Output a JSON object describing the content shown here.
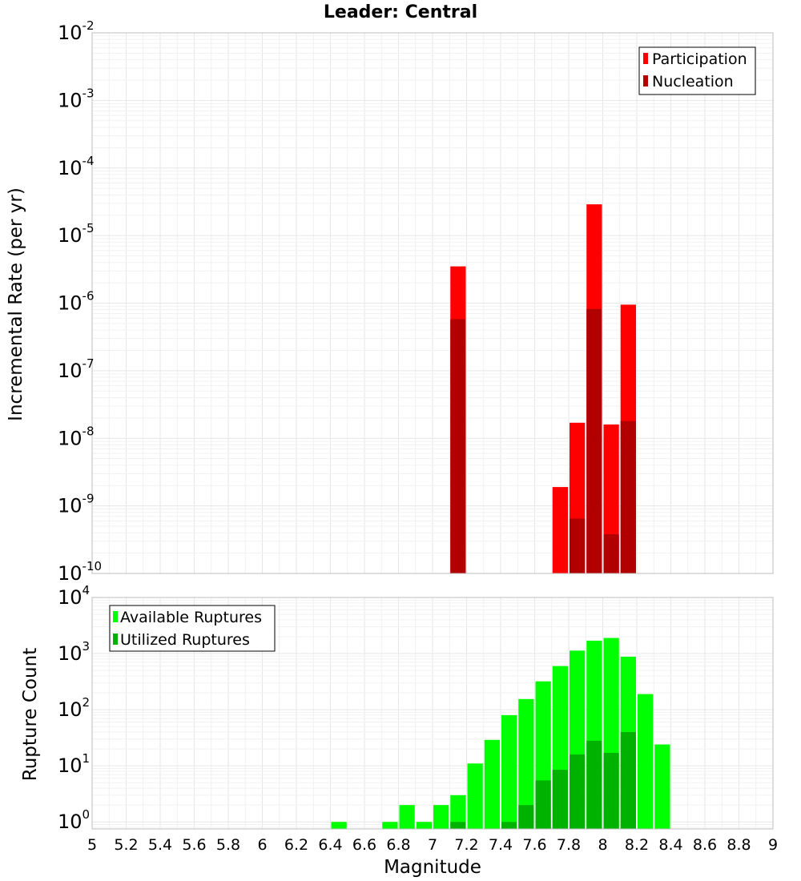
{
  "chart_data": [
    {
      "type": "bar",
      "title": "Leader: Central",
      "xlabel": "",
      "ylabel": "Incremental Rate (per yr)",
      "yscale": "log",
      "ylim": [
        1e-10,
        0.01
      ],
      "xlim": [
        5,
        9
      ],
      "bin_width": 0.1,
      "grid": true,
      "legend_position": "top-right",
      "series": [
        {
          "name": "Participation",
          "color": "#ff0000",
          "x": [
            7.15,
            7.75,
            7.85,
            7.95,
            8.05,
            8.15
          ],
          "values": [
            3.5e-06,
            1.9e-09,
            1.7e-08,
            2.9e-05,
            1.6e-08,
            9.5e-07
          ]
        },
        {
          "name": "Nucleation",
          "color": "#b20000",
          "x": [
            7.15,
            7.85,
            7.95,
            8.05,
            8.15
          ],
          "values": [
            5.8e-07,
            6.5e-10,
            8.2e-07,
            3.8e-10,
            1.8e-08
          ]
        }
      ],
      "ytick_labels": [
        {
          "base": "10",
          "exp": "-10"
        },
        {
          "base": "10",
          "exp": "-9"
        },
        {
          "base": "10",
          "exp": "-8"
        },
        {
          "base": "10",
          "exp": "-7"
        },
        {
          "base": "10",
          "exp": "-6"
        },
        {
          "base": "10",
          "exp": "-5"
        },
        {
          "base": "10",
          "exp": "-4"
        },
        {
          "base": "10",
          "exp": "-3"
        },
        {
          "base": "10",
          "exp": "-2"
        }
      ]
    },
    {
      "type": "bar",
      "title": "",
      "xlabel": "Magnitude",
      "ylabel": "Rupture Count",
      "yscale": "log",
      "ylim": [
        0.75,
        10000
      ],
      "xlim": [
        5,
        9
      ],
      "bin_width": 0.1,
      "grid": true,
      "legend_position": "top-left",
      "series": [
        {
          "name": "Available Ruptures",
          "color": "#00ff00",
          "x": [
            6.45,
            6.75,
            6.85,
            6.95,
            7.05,
            7.15,
            7.25,
            7.35,
            7.45,
            7.55,
            7.65,
            7.75,
            7.85,
            7.95,
            8.05,
            8.15,
            8.25,
            8.35
          ],
          "values": [
            1,
            1,
            2,
            1,
            2,
            3,
            11,
            29,
            80,
            155,
            320,
            600,
            1130,
            1700,
            1900,
            880,
            190,
            24
          ]
        },
        {
          "name": "Utilized Ruptures",
          "color": "#00b200",
          "x": [
            7.15,
            7.45,
            7.55,
            7.65,
            7.75,
            7.85,
            7.95,
            8.05,
            8.15
          ],
          "values": [
            1,
            1,
            2,
            5.5,
            8.5,
            16,
            28,
            17,
            40
          ]
        }
      ],
      "xtick_labels": [
        "5",
        "5.2",
        "5.4",
        "5.6",
        "5.8",
        "6",
        "6.2",
        "6.4",
        "6.6",
        "6.8",
        "7",
        "7.2",
        "7.4",
        "7.6",
        "7.8",
        "8",
        "8.2",
        "8.4",
        "8.6",
        "8.8",
        "9"
      ],
      "ytick_labels": [
        {
          "base": "10",
          "exp": "0"
        },
        {
          "base": "10",
          "exp": "1"
        },
        {
          "base": "10",
          "exp": "2"
        },
        {
          "base": "10",
          "exp": "3"
        },
        {
          "base": "10",
          "exp": "4"
        }
      ]
    }
  ]
}
